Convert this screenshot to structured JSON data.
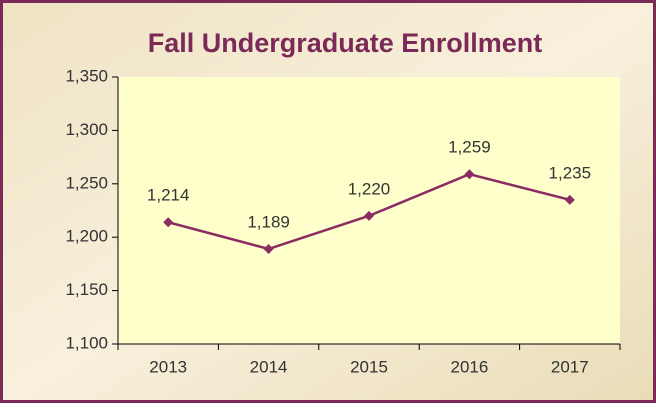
{
  "chart_data": {
    "type": "line",
    "title": "Fall Undergraduate Enrollment",
    "categories": [
      "2013",
      "2014",
      "2015",
      "2016",
      "2017"
    ],
    "series": [
      {
        "name": "Enrollment",
        "color": "#8b2c62",
        "values": [
          1214,
          1189,
          1220,
          1259,
          1235
        ],
        "value_labels": [
          "1,214",
          "1,189",
          "1,220",
          "1,259",
          "1,235"
        ]
      }
    ],
    "ylim": [
      1100,
      1350
    ],
    "yticks": [
      {
        "value": 1100,
        "label": "1,100"
      },
      {
        "value": 1150,
        "label": "1,150"
      },
      {
        "value": 1200,
        "label": "1,200"
      },
      {
        "value": 1250,
        "label": "1,250"
      },
      {
        "value": 1300,
        "label": "1,300"
      },
      {
        "value": 1350,
        "label": "1,350"
      }
    ],
    "grid": false
  }
}
